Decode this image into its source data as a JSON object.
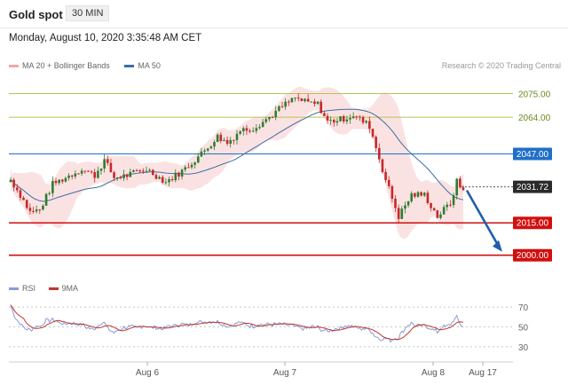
{
  "header": {
    "title": "Gold spot",
    "interval": "30 MIN",
    "datetime": "Monday, August 10, 2020 3:35:48 AM CET"
  },
  "legend": {
    "bollinger": "MA 20 + Bollinger Bands",
    "ma50": "MA 50",
    "credit": "Research © 2020 Trading Central"
  },
  "rsi_legend": {
    "rsi": "RSI",
    "ma9": "9MA"
  },
  "colors": {
    "bull": "#2e7d32",
    "bear": "#c62828",
    "bollinger": "#f4a6a6",
    "ma50": "#3a6ea5",
    "resistance_green": "#b5c458",
    "support_red": "#d20f0f",
    "ma50_level": "#1f6fc9",
    "current": "#2b2b2b",
    "arrow": "#1f5fae",
    "rsi": "#8a9bd6",
    "rsi_ma": "#c0392b"
  },
  "chart_data": [
    {
      "type": "candlestick",
      "title": "Gold spot",
      "ylim": [
        1990,
        2083
      ],
      "x_ticks": [
        "Aug 6",
        "Aug 7",
        "Aug 8",
        "Aug 17"
      ],
      "levels": [
        {
          "label": "2075.00",
          "value": 2075.0,
          "kind": "resistance"
        },
        {
          "label": "2064.00",
          "value": 2064.0,
          "kind": "resistance"
        },
        {
          "label": "2047.00",
          "value": 2047.0,
          "kind": "ma50"
        },
        {
          "label": "2031.72",
          "value": 2031.72,
          "kind": "current"
        },
        {
          "label": "2015.00",
          "value": 2015.0,
          "kind": "support"
        },
        {
          "label": "2000.00",
          "value": 2000.0,
          "kind": "support"
        }
      ],
      "forecast": {
        "from": 2031.72,
        "to": 2000.0
      },
      "series": [
        {
          "name": "MA 20 + Bollinger Bands"
        },
        {
          "name": "MA 50"
        }
      ]
    },
    {
      "type": "line",
      "ylim": [
        20,
        80
      ],
      "yticks": [
        70,
        50,
        30
      ],
      "series": [
        {
          "name": "RSI"
        },
        {
          "name": "9MA"
        }
      ]
    }
  ]
}
